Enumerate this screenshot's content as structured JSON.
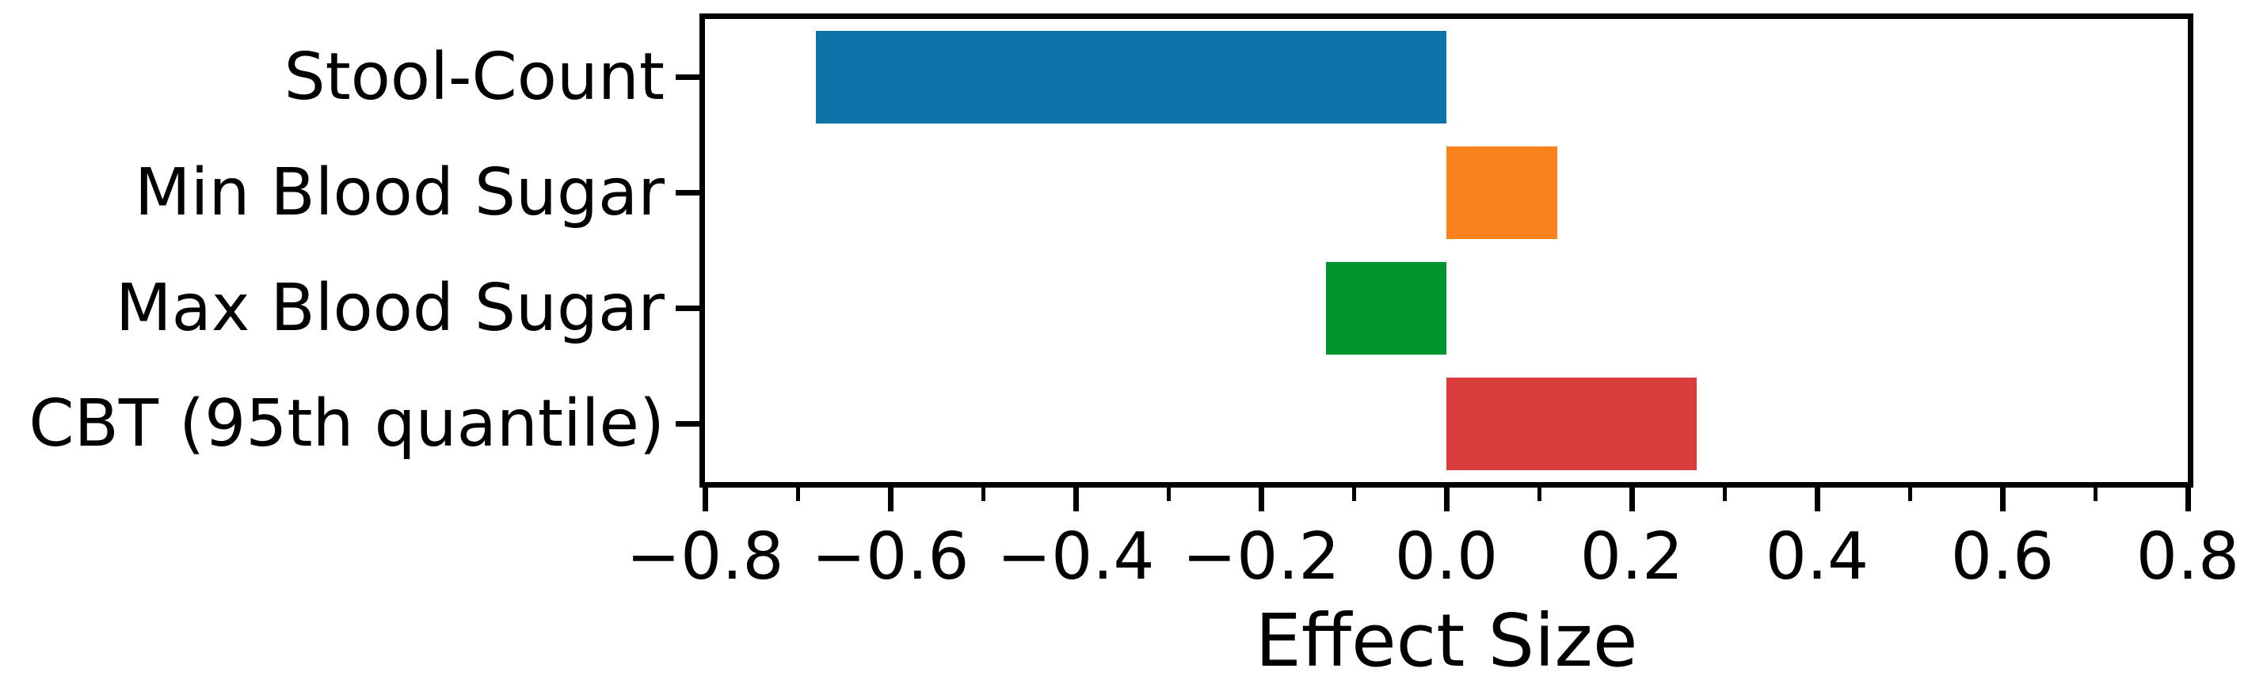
{
  "chart_data": {
    "type": "bar",
    "orientation": "horizontal",
    "title": "",
    "xlabel": "Effect Size",
    "ylabel": "",
    "categories": [
      "Stool-Count",
      "Min Blood Sugar",
      "Max Blood Sugar",
      "CBT (95th quantile)"
    ],
    "values": [
      -0.68,
      0.12,
      -0.13,
      0.27
    ],
    "bar_colors": [
      "#0b73a7",
      "#f9821d",
      "#00962d",
      "#da3b3b"
    ],
    "xlim": [
      -0.8,
      0.8
    ],
    "x_major_ticks": [
      -0.8,
      -0.6,
      -0.4,
      -0.2,
      0.0,
      0.2,
      0.4,
      0.6,
      0.8
    ],
    "x_major_tick_labels": [
      "−0.8",
      "−0.6",
      "−0.4",
      "−0.2",
      "0.0",
      "0.2",
      "0.4",
      "0.6",
      "0.8"
    ],
    "x_minor_ticks": [
      -0.7,
      -0.5,
      -0.3,
      -0.1,
      0.1,
      0.3,
      0.5,
      0.7
    ],
    "grid": false,
    "legend": null,
    "bar_height_fraction": 0.8,
    "text_color": "#000000",
    "spine_color": "#000000",
    "background_color": "#ffffff"
  }
}
